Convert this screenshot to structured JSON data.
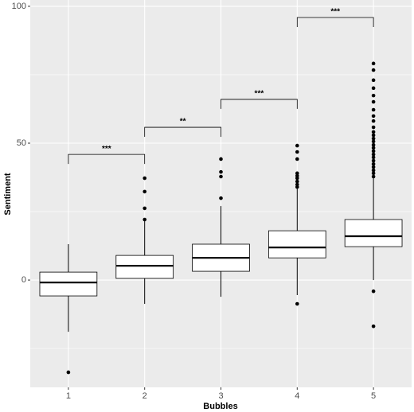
{
  "chart_data": {
    "type": "box",
    "x_label": "Bubbles",
    "y_label": "Sentiment",
    "categories": [
      "1",
      "2",
      "3",
      "4",
      "5"
    ],
    "ylim": [
      -39.2,
      102.3
    ],
    "yticks": [
      0,
      50,
      100
    ],
    "minor_yticks": [
      -25,
      25,
      75
    ],
    "grid": true,
    "background": "#ebebeb",
    "box_fill": "#ffffff",
    "color": "#000000",
    "boxes": [
      {
        "whisker_low": -18.9,
        "q1": -5.8,
        "median": -0.9,
        "q3": 2.9,
        "whisker_high": 13.1,
        "outliers": [
          -33.7
        ]
      },
      {
        "whisker_low": -8.7,
        "q1": 0.6,
        "median": 5.2,
        "q3": 9.0,
        "whisker_high": 21.5,
        "outliers": [
          22.1,
          26.2,
          32.3,
          37.2
        ]
      },
      {
        "whisker_low": -6.1,
        "q1": 3.2,
        "median": 8.1,
        "q3": 13.1,
        "whisker_high": 27.0,
        "outliers": [
          29.9,
          37.8,
          39.5,
          44.2
        ]
      },
      {
        "whisker_low": -5.5,
        "q1": 8.1,
        "median": 11.9,
        "q3": 18.0,
        "whisker_high": 33.4,
        "outliers": [
          -8.7,
          34.0,
          34.9,
          36.0,
          37.2,
          38.1,
          39.0,
          44.2,
          46.8,
          49.1
        ]
      },
      {
        "whisker_low": 0.0,
        "q1": 12.2,
        "median": 16.0,
        "q3": 22.1,
        "whisker_high": 37.2,
        "outliers": [
          -4.1,
          -16.9,
          37.8,
          39.0,
          40.1,
          41.3,
          42.4,
          43.6,
          44.8,
          45.9,
          47.1,
          48.3,
          49.4,
          50.6,
          51.7,
          52.9,
          54.1,
          55.8,
          58.1,
          59.9,
          62.2,
          65.1,
          67.4,
          70.1,
          73.0,
          76.7,
          79.1
        ]
      }
    ],
    "brackets": [
      {
        "from": 0,
        "to": 1,
        "y": 45.9,
        "label": "***"
      },
      {
        "from": 1,
        "to": 2,
        "y": 55.8,
        "label": "**"
      },
      {
        "from": 2,
        "to": 3,
        "y": 66.0,
        "label": "***"
      },
      {
        "from": 3,
        "to": 4,
        "y": 95.9,
        "label": "***"
      }
    ]
  }
}
